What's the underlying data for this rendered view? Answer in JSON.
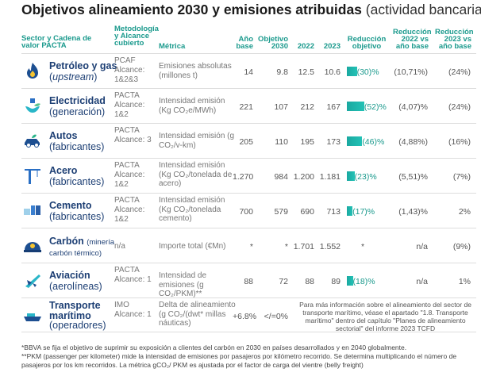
{
  "title": {
    "bold": "Objetivos alineamiento 2030 y emisiones atribuidas",
    "normal": "(actividad bancaria)"
  },
  "headers": {
    "sector": "Sector y Cadena de valor PACTA",
    "metodologia": "Metodología y Alcance cubierto",
    "metrica": "Métrica",
    "base": "Año base",
    "objetivo": "Objetivo 2030",
    "y2022": "2022",
    "y2023": "2023",
    "reduccion": "Reducción objetivo",
    "red2022": "Reducción 2022 vs año base",
    "red2023": "Reducción 2023 vs año base"
  },
  "accent": "#1b9a8d",
  "rows": [
    {
      "icon": "flame-icon",
      "name": "Petróleo y gas",
      "sub": "(upstream)",
      "sub_italic": true,
      "meth": "PCAF Alcance: 1&2&3",
      "metric": "Emisiones absolutas (millones t)",
      "base": "14",
      "obj": "9.8",
      "y2022": "12.5",
      "y2023": "10.6",
      "red": "(30)%",
      "red_pct": 30,
      "r2022": "(10,71%)",
      "r2023": "(24%)"
    },
    {
      "icon": "electricity-icon",
      "name": "Electricidad",
      "sub": "(generación)",
      "meth": "PACTA Alcance: 1&2",
      "metric": "Intensidad emisión (Kg CO₂e/MWh)",
      "base": "221",
      "obj": "107",
      "y2022": "212",
      "y2023": "167",
      "red": "(52)%",
      "red_pct": 52,
      "r2022": "(4,07)%",
      "r2023": "(24%)"
    },
    {
      "icon": "car-icon",
      "name": "Autos",
      "sub": "(fabricantes)",
      "meth": "PACTA Alcance: 3",
      "metric": "Intensidad emisión (g CO₂/v-km)",
      "base": "205",
      "obj": "110",
      "y2022": "195",
      "y2023": "173",
      "red": "(46)%",
      "red_pct": 46,
      "r2022": "(4,88%)",
      "r2023": "(16%)"
    },
    {
      "icon": "crane-icon",
      "name": "Acero",
      "sub": "(fabricantes)",
      "meth": "PACTA Alcance: 1&2",
      "metric": "Intensidad emisión (Kg CO₂/tonelada de acero)",
      "base": "1.270",
      "obj": "984",
      "y2022": "1.200",
      "y2023": "1.181",
      "red": "(23)%",
      "red_pct": 23,
      "r2022": "(5,51)%",
      "r2023": "(7%)"
    },
    {
      "icon": "factory-icon",
      "name": "Cemento",
      "sub": "(fabricantes)",
      "meth": "PACTA Alcance: 1&2",
      "metric": "Intensidad emisión (Kg CO₂/tonelada cemento)",
      "base": "700",
      "obj": "579",
      "y2022": "690",
      "y2023": "713",
      "red": "(17)%",
      "red_pct": 17,
      "r2022": "(1,43)%",
      "r2023": "2%"
    },
    {
      "icon": "mining-helmet-icon",
      "name": "Carbón",
      "inline_sub": "(minería carbón térmico)",
      "meth": "n/a",
      "metric": "Importe total (€Mn)",
      "base": "*",
      "obj": "*",
      "y2022": "1.701",
      "y2023": "1.552",
      "red": "*",
      "r2022": "n/a",
      "r2023": "(9%)"
    },
    {
      "icon": "airplane-icon",
      "name": "Aviación",
      "sub": "(aerolíneas)",
      "meth": "PACTA Alcance: 1",
      "metric": "Intensidad de emisiones (g CO₂/PKM)**",
      "base": "88",
      "obj": "72",
      "y2022": "88",
      "y2023": "89",
      "red": "(18)%",
      "red_pct": 18,
      "r2022": "n/a",
      "r2023": "1%"
    },
    {
      "icon": "ship-icon",
      "name": "Transporte marítimo",
      "sub": "(operadores)",
      "meth": "IMO Alcance: 1",
      "metric": "Delta de alineamiento (g CO₂/(dwt* millas náuticas)",
      "base": "+6.8%",
      "obj": "</=0%",
      "note": "Para más información sobre el alineamiento del sector de transporte marítimo, véase el apartado \"1.8. Transporte marítimo\" dentro del capítulo \"Planes de alineamiento sectorial\" del informe 2023 TCFD"
    }
  ],
  "footnotes": [
    "*BBVA se fija el objetivo de suprimir su exposición a clientes del carbón en 2030 en países desarrollados y en 2040 globalmente.",
    "**PKM (passenger per kilometer) mide la intensidad de emisiones por pasajeros por kilómetro recorrido. Se determina multiplicando el número de pasajeros por los km recorridos. La métrica gCO₂/ PKM es ajustada por el factor de carga del vientre (belly freight)"
  ]
}
